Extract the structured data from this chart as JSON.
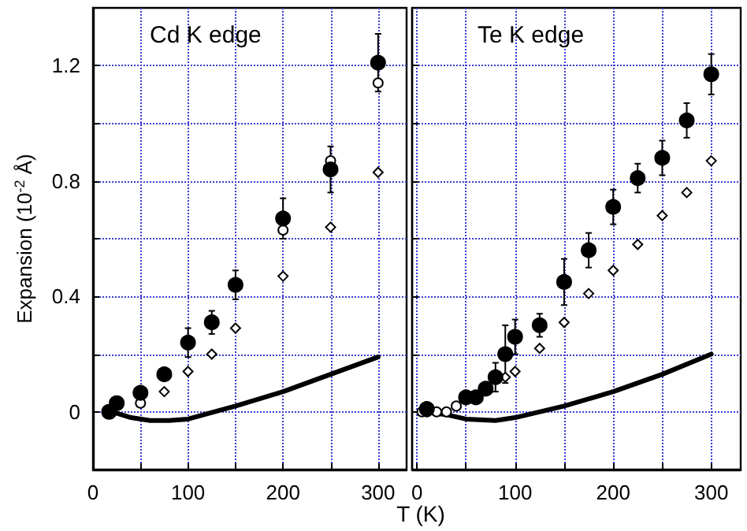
{
  "chart_data": [
    {
      "type": "scatter",
      "title": "Cd K edge",
      "xlabel": "T (K)",
      "ylabel": "Expansion (10$^{-2}$ Å)",
      "xlim": [
        0,
        330
      ],
      "ylim": [
        -0.2,
        1.4
      ],
      "xticks": [
        0,
        {
          "value": 50,
          "label": null
        },
        100,
        {
          "value": 150,
          "label": null
        },
        200,
        {
          "value": 250,
          "label": null
        },
        300
      ],
      "yticks": [
        {
          "value": -0.2,
          "label": null
        },
        0,
        {
          "value": 0.2,
          "label": null
        },
        0.4,
        {
          "value": 0.6,
          "label": null
        },
        0.8,
        {
          "value": 1.0,
          "label": null
        },
        1.2
      ],
      "grid": true,
      "series": [
        {
          "type": "line",
          "marker": "none",
          "color": "#000000",
          "x": [
            20,
            40,
            60,
            80,
            100,
            150,
            200,
            250,
            300
          ],
          "values": [
            0.0,
            -0.02,
            -0.03,
            -0.03,
            -0.025,
            0.02,
            0.07,
            0.13,
            0.19
          ]
        },
        {
          "marker": "diamond",
          "color": "#fdfdfd",
          "x": [
            75,
            100,
            125,
            150,
            200,
            250,
            300
          ],
          "values": [
            0.07,
            0.14,
            0.2,
            0.29,
            0.47,
            0.64,
            0.83
          ]
        },
        {
          "marker": "circle",
          "color": "#ffffff",
          "x": [
            50,
            200,
            250,
            300
          ],
          "values": [
            0.03,
            0.63,
            0.87,
            1.14
          ]
        },
        {
          "marker": "circle",
          "color": "#000000",
          "x": [
            17,
            25,
            50,
            75,
            100,
            125,
            150,
            200,
            250,
            300
          ],
          "values": [
            0.0,
            0.03,
            0.066,
            0.13,
            0.24,
            0.31,
            0.44,
            0.67,
            0.84,
            1.21
          ],
          "errors": [
            null,
            null,
            null,
            null,
            0.05,
            0.04,
            0.05,
            0.07,
            0.08,
            0.1
          ]
        }
      ]
    },
    {
      "type": "scatter",
      "title": "Te K edge",
      "xlim": [
        -5,
        330
      ],
      "ylim": [
        -0.2,
        1.4
      ],
      "tick_labels": "x",
      "xticks": [
        0,
        {
          "value": 50,
          "label": null
        },
        100,
        {
          "value": 150,
          "label": null
        },
        200,
        {
          "value": 250,
          "label": null
        },
        300
      ],
      "yticks": [
        {
          "value": -0.2,
          "label": null
        },
        0,
        {
          "value": 0.2,
          "label": null
        },
        0.4,
        {
          "value": 0.6,
          "label": null
        },
        0.8,
        {
          "value": 1.0,
          "label": null
        },
        1.2
      ],
      "grid": true,
      "series": [
        {
          "type": "line",
          "marker": "none",
          "color": "#000000",
          "x": [
            10,
            30,
            50,
            80,
            100,
            150,
            200,
            250,
            300
          ],
          "values": [
            0.0,
            -0.01,
            -0.025,
            -0.03,
            -0.02,
            0.02,
            0.07,
            0.13,
            0.2
          ]
        },
        {
          "marker": "diamond",
          "color": "#fdfdfd",
          "x": [
            90,
            100,
            125,
            150,
            175,
            200,
            225,
            250,
            275,
            300
          ],
          "values": [
            0.12,
            0.14,
            0.22,
            0.31,
            0.41,
            0.49,
            0.58,
            0.68,
            0.76,
            0.87
          ]
        },
        {
          "marker": "circle",
          "color": "#ffffff",
          "x": [
            5,
            10,
            20,
            30,
            40
          ],
          "values": [
            0.0,
            0.0,
            0.0,
            0.0,
            0.02
          ]
        },
        {
          "marker": "circle",
          "color": "#000000",
          "x": [
            10,
            50,
            60,
            70,
            80,
            90,
            100,
            125,
            150,
            175,
            200,
            225,
            250,
            275,
            300
          ],
          "values": [
            0.01,
            0.05,
            0.05,
            0.08,
            0.12,
            0.2,
            0.26,
            0.3,
            0.45,
            0.56,
            0.71,
            0.81,
            0.88,
            1.01,
            1.17
          ],
          "errors": [
            null,
            null,
            null,
            null,
            0.05,
            0.1,
            0.06,
            0.04,
            0.08,
            0.06,
            0.06,
            0.05,
            0.06,
            0.06,
            0.07
          ]
        }
      ]
    }
  ]
}
